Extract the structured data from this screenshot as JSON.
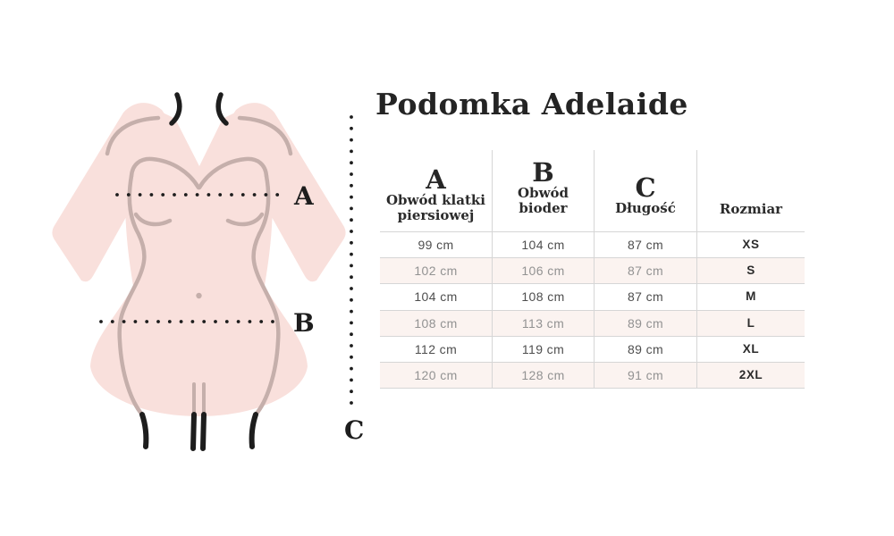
{
  "title": "Podomka Adelaide",
  "diagram": {
    "label_a": "A",
    "label_b": "B",
    "label_c": "C"
  },
  "table": {
    "columns": [
      {
        "letter": "A",
        "label": "Obwód klatki piersiowej"
      },
      {
        "letter": "B",
        "label": "Obwód bioder"
      },
      {
        "letter": "C",
        "label": "Długość"
      },
      {
        "letter": "",
        "label": "Rozmiar"
      }
    ],
    "rows": [
      {
        "a": "99 cm",
        "b": "104 cm",
        "c": "87 cm",
        "size": "XS"
      },
      {
        "a": "102 cm",
        "b": "106 cm",
        "c": "87 cm",
        "size": "S"
      },
      {
        "a": "104 cm",
        "b": "108 cm",
        "c": "87 cm",
        "size": "M"
      },
      {
        "a": "108 cm",
        "b": "113 cm",
        "c": "89 cm",
        "size": "L"
      },
      {
        "a": "112 cm",
        "b": "119 cm",
        "c": "89 cm",
        "size": "XL"
      },
      {
        "a": "120 cm",
        "b": "128 cm",
        "c": "91 cm",
        "size": "2XL"
      }
    ]
  },
  "colors": {
    "garment_fill": "#f9e0dc",
    "garment_outline": "#c5afab",
    "accent_black": "#1d1d1d",
    "row_alt_bg": "#fbf3f0",
    "table_line": "#d6d6d6",
    "text_dark": "#4e4e4e",
    "text_light": "#929292",
    "heading_color": "#242424"
  }
}
